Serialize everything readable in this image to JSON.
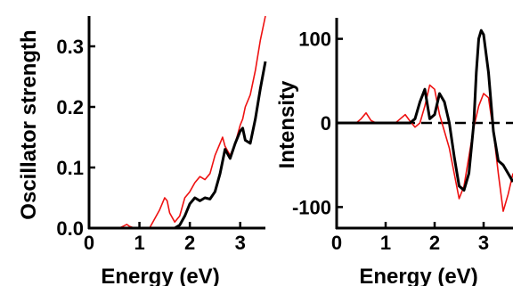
{
  "colors": {
    "black_series": "#000000",
    "red_series": "#ee1111",
    "axis": "#000000"
  },
  "chart_data": [
    {
      "type": "line",
      "xlabel": "Energy (eV)",
      "ylabel": "Oscillator strength",
      "xlim": [
        0,
        3.5
      ],
      "ylim": [
        0,
        0.35
      ],
      "xticks": [
        0,
        1,
        2,
        3
      ],
      "yticks": [
        0.0,
        0.1,
        0.2,
        0.3
      ],
      "xtick_labels": [
        "0",
        "1",
        "2",
        "3"
      ],
      "ytick_labels": [
        "0.0",
        "0.1",
        "0.2",
        "0.3"
      ],
      "grid": false,
      "series": [
        {
          "color": "#000000",
          "x": [
            0,
            1.0,
            1.5,
            1.7,
            1.8,
            1.9,
            2.0,
            2.1,
            2.2,
            2.3,
            2.4,
            2.5,
            2.6,
            2.65,
            2.7,
            2.8,
            2.9,
            3.0,
            3.05,
            3.1,
            3.2,
            3.3,
            3.4,
            3.5
          ],
          "y": [
            0,
            0,
            0,
            0,
            0.005,
            0.02,
            0.04,
            0.05,
            0.045,
            0.05,
            0.048,
            0.06,
            0.09,
            0.11,
            0.13,
            0.115,
            0.14,
            0.16,
            0.165,
            0.145,
            0.14,
            0.18,
            0.23,
            0.275
          ]
        },
        {
          "color": "#ee1111",
          "x": [
            0,
            0.6,
            0.7,
            0.75,
            0.8,
            0.9,
            1.2,
            1.4,
            1.5,
            1.55,
            1.6,
            1.7,
            1.8,
            1.9,
            2.0,
            2.1,
            2.2,
            2.3,
            2.4,
            2.5,
            2.6,
            2.65,
            2.7,
            2.8,
            2.9,
            3.0,
            3.05,
            3.1,
            3.2,
            3.3,
            3.4,
            3.5
          ],
          "y": [
            0,
            0,
            0.004,
            0.006,
            0.003,
            0,
            0,
            0.03,
            0.05,
            0.045,
            0.025,
            0.01,
            0.02,
            0.05,
            0.06,
            0.075,
            0.085,
            0.08,
            0.09,
            0.12,
            0.14,
            0.15,
            0.135,
            0.12,
            0.14,
            0.17,
            0.18,
            0.2,
            0.22,
            0.26,
            0.31,
            0.35
          ]
        }
      ]
    },
    {
      "type": "line",
      "xlabel": "Energy (eV)",
      "ylabel": "Intensity",
      "xlim": [
        0,
        3.6
      ],
      "ylim": [
        -125,
        125
      ],
      "xticks": [
        0,
        1,
        2,
        3
      ],
      "yticks": [
        -100,
        0,
        100
      ],
      "xtick_labels": [
        "0",
        "1",
        "2",
        "3"
      ],
      "ytick_labels": [
        "-100",
        "0",
        "100"
      ],
      "grid": false,
      "reference_line": {
        "y": 0,
        "style": "dashed"
      },
      "series": [
        {
          "color": "#000000",
          "x": [
            0,
            1.5,
            1.6,
            1.7,
            1.8,
            1.9,
            2.0,
            2.1,
            2.2,
            2.3,
            2.4,
            2.5,
            2.6,
            2.7,
            2.8,
            2.85,
            2.9,
            2.95,
            3.0,
            3.1,
            3.2,
            3.3,
            3.4,
            3.5,
            3.6
          ],
          "y": [
            0,
            0,
            5,
            25,
            40,
            5,
            10,
            35,
            25,
            0,
            -40,
            -75,
            -80,
            -60,
            0,
            60,
            100,
            110,
            105,
            60,
            -10,
            -45,
            -50,
            -60,
            -70
          ]
        },
        {
          "color": "#ee1111",
          "x": [
            0,
            0.4,
            0.5,
            0.6,
            0.7,
            0.8,
            1.2,
            1.3,
            1.4,
            1.5,
            1.6,
            1.7,
            1.8,
            1.9,
            2.0,
            2.1,
            2.2,
            2.3,
            2.4,
            2.5,
            2.6,
            2.7,
            2.8,
            2.9,
            3.0,
            3.1,
            3.2,
            3.3,
            3.4,
            3.5,
            3.6
          ],
          "y": [
            0,
            0,
            5,
            12,
            3,
            0,
            0,
            5,
            10,
            2,
            -5,
            0,
            20,
            45,
            40,
            10,
            -10,
            -30,
            -60,
            -90,
            -75,
            -40,
            -5,
            20,
            35,
            30,
            -10,
            -60,
            -105,
            -85,
            -60
          ]
        }
      ]
    }
  ]
}
